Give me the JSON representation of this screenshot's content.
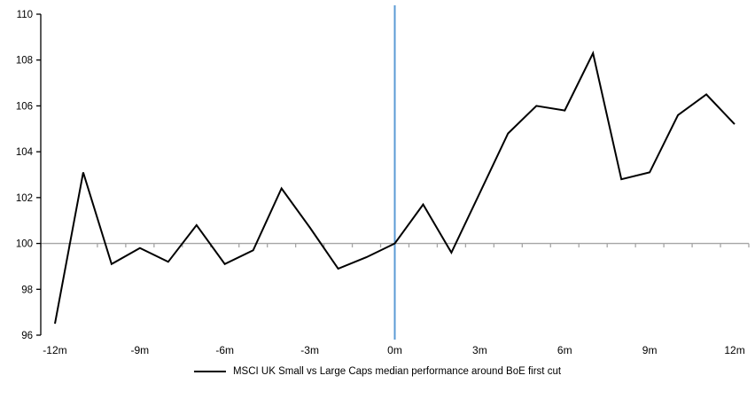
{
  "chart_data": {
    "type": "line",
    "title": "",
    "categories": [
      "-12m",
      "-11m",
      "-10m",
      "-9m",
      "-8m",
      "-7m",
      "-6m",
      "-5m",
      "-4m",
      "-3m",
      "-2m",
      "-1m",
      "0m",
      "1m",
      "2m",
      "3m",
      "4m",
      "5m",
      "6m",
      "7m",
      "8m",
      "9m",
      "10m",
      "11m",
      "12m"
    ],
    "x": [
      -12,
      -11,
      -10,
      -9,
      -8,
      -7,
      -6,
      -5,
      -4,
      -3,
      -2,
      -1,
      0,
      1,
      2,
      3,
      4,
      5,
      6,
      7,
      8,
      9,
      10,
      11,
      12
    ],
    "series": [
      {
        "name": "MSCI UK Small vs Large Caps median performance around BoE first cut",
        "values": [
          96.5,
          103.1,
          99.1,
          99.8,
          99.2,
          100.8,
          99.1,
          99.7,
          102.4,
          100.7,
          98.9,
          99.4,
          100.0,
          101.7,
          99.6,
          102.2,
          104.8,
          106.0,
          105.8,
          108.3,
          102.8,
          103.1,
          105.6,
          106.5,
          105.2
        ]
      }
    ],
    "ylim": [
      96,
      110
    ],
    "yticks": [
      96,
      98,
      100,
      102,
      104,
      106,
      108,
      110
    ],
    "xtick_labels": [
      "-12m",
      "-9m",
      "-6m",
      "-3m",
      "0m",
      "3m",
      "6m",
      "9m",
      "12m"
    ],
    "xtick_month_positions": [
      -12,
      -9,
      -6,
      -3,
      0,
      3,
      6,
      9,
      12
    ],
    "baseline_value": 100,
    "event_line_month": 0,
    "grid": false,
    "legend_position": "bottom",
    "colors": {
      "series": "#000000",
      "baseline_axis": "#A6A6A6",
      "event_line": "#5B9BD5",
      "axis": "#000000",
      "text": "#000000"
    }
  }
}
